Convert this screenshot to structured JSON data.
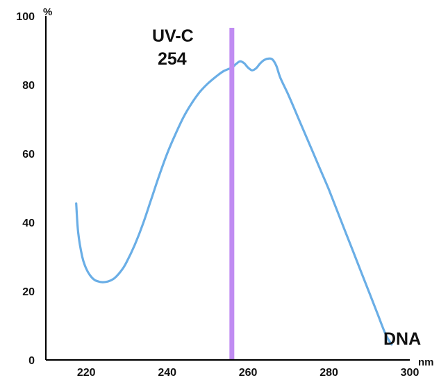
{
  "chart_data": {
    "type": "line",
    "title": "",
    "xlabel": "nm",
    "ylabel": "%",
    "xlim": [
      210,
      300
    ],
    "ylim": [
      0,
      100
    ],
    "x_ticks": [
      220,
      240,
      260,
      280,
      300
    ],
    "y_ticks": [
      0,
      20,
      40,
      60,
      80,
      100
    ],
    "grid": false,
    "series": [
      {
        "name": "DNA",
        "color": "#6aaee6",
        "x": [
          217.5,
          218,
          219,
          220,
          221,
          222,
          223,
          224,
          225,
          226,
          227,
          228,
          229,
          230,
          232,
          234,
          236,
          238,
          240,
          242,
          244,
          246,
          248,
          250,
          252,
          254,
          256,
          257,
          258,
          259,
          260,
          261,
          262,
          263,
          264,
          265,
          266,
          267,
          268,
          270,
          272,
          274,
          276,
          278,
          280,
          282,
          284,
          286,
          288,
          290,
          292,
          294,
          295.5
        ],
        "values": [
          45.5,
          37,
          30,
          26.5,
          24.5,
          23.3,
          22.8,
          22.6,
          22.7,
          23.1,
          23.8,
          25,
          26.5,
          28.5,
          33.5,
          39.5,
          46.5,
          53.5,
          60,
          65.5,
          70.5,
          74.5,
          77.8,
          80.3,
          82.3,
          84,
          85,
          86,
          86.8,
          86.3,
          85,
          84.2,
          84.8,
          86.2,
          87.2,
          87.6,
          87.4,
          85.5,
          82,
          77,
          71.5,
          66,
          60.5,
          55,
          49.5,
          43.5,
          37.5,
          31.5,
          25.5,
          19.5,
          13.5,
          7.5,
          4.5
        ]
      }
    ],
    "series_label": "DNA",
    "annotation": {
      "line1": "UV-C",
      "line2": "254",
      "x": 256,
      "color": "#c08cf2"
    }
  }
}
